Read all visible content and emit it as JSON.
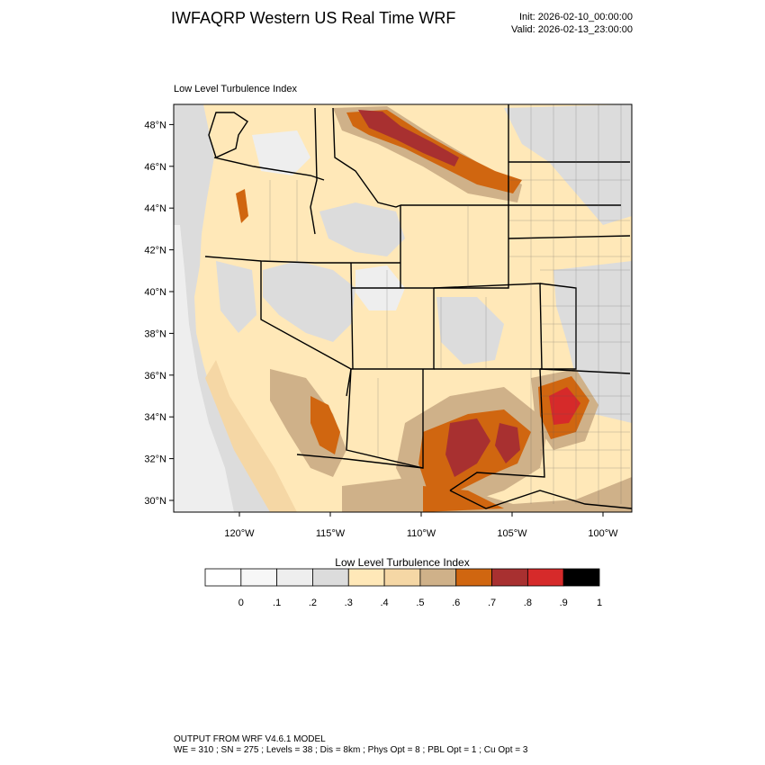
{
  "header": {
    "title": "IWFAQRP Western US Real Time WRF",
    "init": "Init: 2026-02-10_00:00:00",
    "valid": "Valid: 2026-02-13_23:00:00"
  },
  "map": {
    "title": "Low Level Turbulence Index",
    "lat_labels": [
      "48°N",
      "46°N",
      "44°N",
      "42°N",
      "40°N",
      "38°N",
      "36°N",
      "34°N",
      "32°N",
      "30°N"
    ],
    "lat_values": [
      48,
      46,
      44,
      42,
      40,
      38,
      36,
      34,
      32,
      30
    ],
    "lon_labels": [
      "120°W",
      "115°W",
      "110°W",
      "105°W",
      "100°W"
    ],
    "lon_values": [
      -120,
      -115,
      -110,
      -105,
      -100
    ]
  },
  "colorbar": {
    "title": "Low Level Turbulence Index",
    "colors": [
      "#ffffff",
      "#f7f7f7",
      "#eeeeee",
      "#dcdcdc",
      "#ffe8b8",
      "#f5d7a5",
      "#cfb189",
      "#d06610",
      "#a83030",
      "#d62a2a",
      "#000000"
    ],
    "labels": [
      "0",
      ".1",
      ".2",
      ".3",
      ".4",
      ".5",
      ".6",
      ".7",
      ".8",
      ".9",
      "1"
    ]
  },
  "footer": {
    "line1": "OUTPUT FROM WRF V4.6.1 MODEL",
    "line2": "WE = 310 ; SN = 275 ; Levels = 38 ; Dis = 8km ; Phys Opt = 8 ; PBL Opt = 1 ; Cu Opt = 3"
  }
}
